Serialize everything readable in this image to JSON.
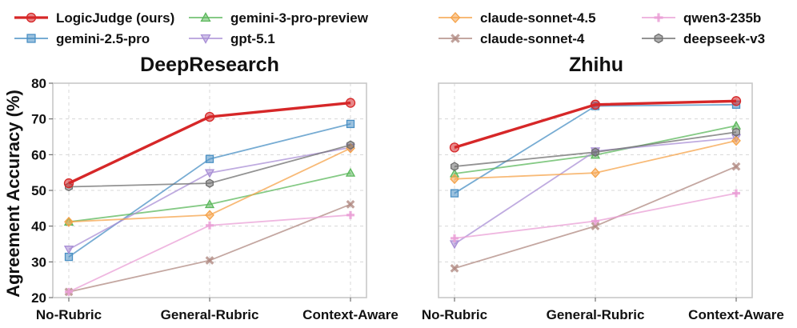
{
  "legend": {
    "entries": [
      {
        "name": "LogicJudge (ours)",
        "color": "#d62728",
        "marker": "circle"
      },
      {
        "name": "gemini-2.5-pro",
        "color": "#4a90c4",
        "marker": "square"
      },
      {
        "name": "gemini-3-pro-preview",
        "color": "#5cb85c",
        "marker": "triangle-up"
      },
      {
        "name": "gpt-5.1",
        "color": "#a98fd6",
        "marker": "triangle-down"
      },
      {
        "name": "claude-sonnet-4.5",
        "color": "#f5a34a",
        "marker": "diamond"
      },
      {
        "name": "claude-sonnet-4",
        "color": "#b08a82",
        "marker": "x"
      },
      {
        "name": "qwen3-235b",
        "color": "#ea9fd6",
        "marker": "plus"
      },
      {
        "name": "deepseek-v3",
        "color": "#6f6f6f",
        "marker": "hexagon"
      }
    ]
  },
  "chart_data": [
    {
      "type": "line",
      "title": "DeepResearch",
      "xlabel": "",
      "ylabel": "Agreement Accuracy (%)",
      "categories": [
        "No-Rubric",
        "General-Rubric",
        "Context-Aware"
      ],
      "ylim": [
        20,
        80
      ],
      "yticks": [
        20,
        30,
        40,
        50,
        60,
        70,
        80
      ],
      "grid": true,
      "series": [
        {
          "name": "LogicJudge (ours)",
          "values": [
            52,
            70.6,
            74.5
          ]
        },
        {
          "name": "gemini-2.5-pro",
          "values": [
            31.4,
            58.8,
            68.6
          ]
        },
        {
          "name": "gemini-3-pro-preview",
          "values": [
            41.2,
            46.1,
            54.9
          ]
        },
        {
          "name": "gpt-5.1",
          "values": [
            33.5,
            54.9,
            62
          ]
        },
        {
          "name": "claude-sonnet-4.5",
          "values": [
            41.2,
            43.1,
            61.8
          ]
        },
        {
          "name": "claude-sonnet-4",
          "values": [
            21.6,
            30.4,
            46.1
          ]
        },
        {
          "name": "qwen3-235b",
          "values": [
            21.6,
            40.2,
            43.1
          ]
        },
        {
          "name": "deepseek-v3",
          "values": [
            51,
            52,
            62.7
          ]
        }
      ]
    },
    {
      "type": "line",
      "title": "Zhihu",
      "xlabel": "",
      "ylabel": "",
      "categories": [
        "No-Rubric",
        "General-Rubric",
        "Context-Aware"
      ],
      "ylim": [
        20,
        80
      ],
      "yticks": [
        20,
        30,
        40,
        50,
        60,
        70,
        80
      ],
      "grid": true,
      "series": [
        {
          "name": "LogicJudge (ours)",
          "values": [
            62,
            74,
            75
          ]
        },
        {
          "name": "gemini-2.5-pro",
          "values": [
            49.2,
            73.6,
            74
          ]
        },
        {
          "name": "gemini-3-pro-preview",
          "values": [
            54.7,
            59.9,
            68.1
          ]
        },
        {
          "name": "gpt-5.1",
          "values": [
            35,
            61,
            64.7
          ]
        },
        {
          "name": "claude-sonnet-4.5",
          "values": [
            53.2,
            54.9,
            63.9
          ]
        },
        {
          "name": "claude-sonnet-4",
          "values": [
            28.2,
            40,
            56.7
          ]
        },
        {
          "name": "qwen3-235b",
          "values": [
            36.6,
            41.4,
            49.2
          ]
        },
        {
          "name": "deepseek-v3",
          "values": [
            56.7,
            60.7,
            66.3
          ]
        }
      ]
    }
  ]
}
